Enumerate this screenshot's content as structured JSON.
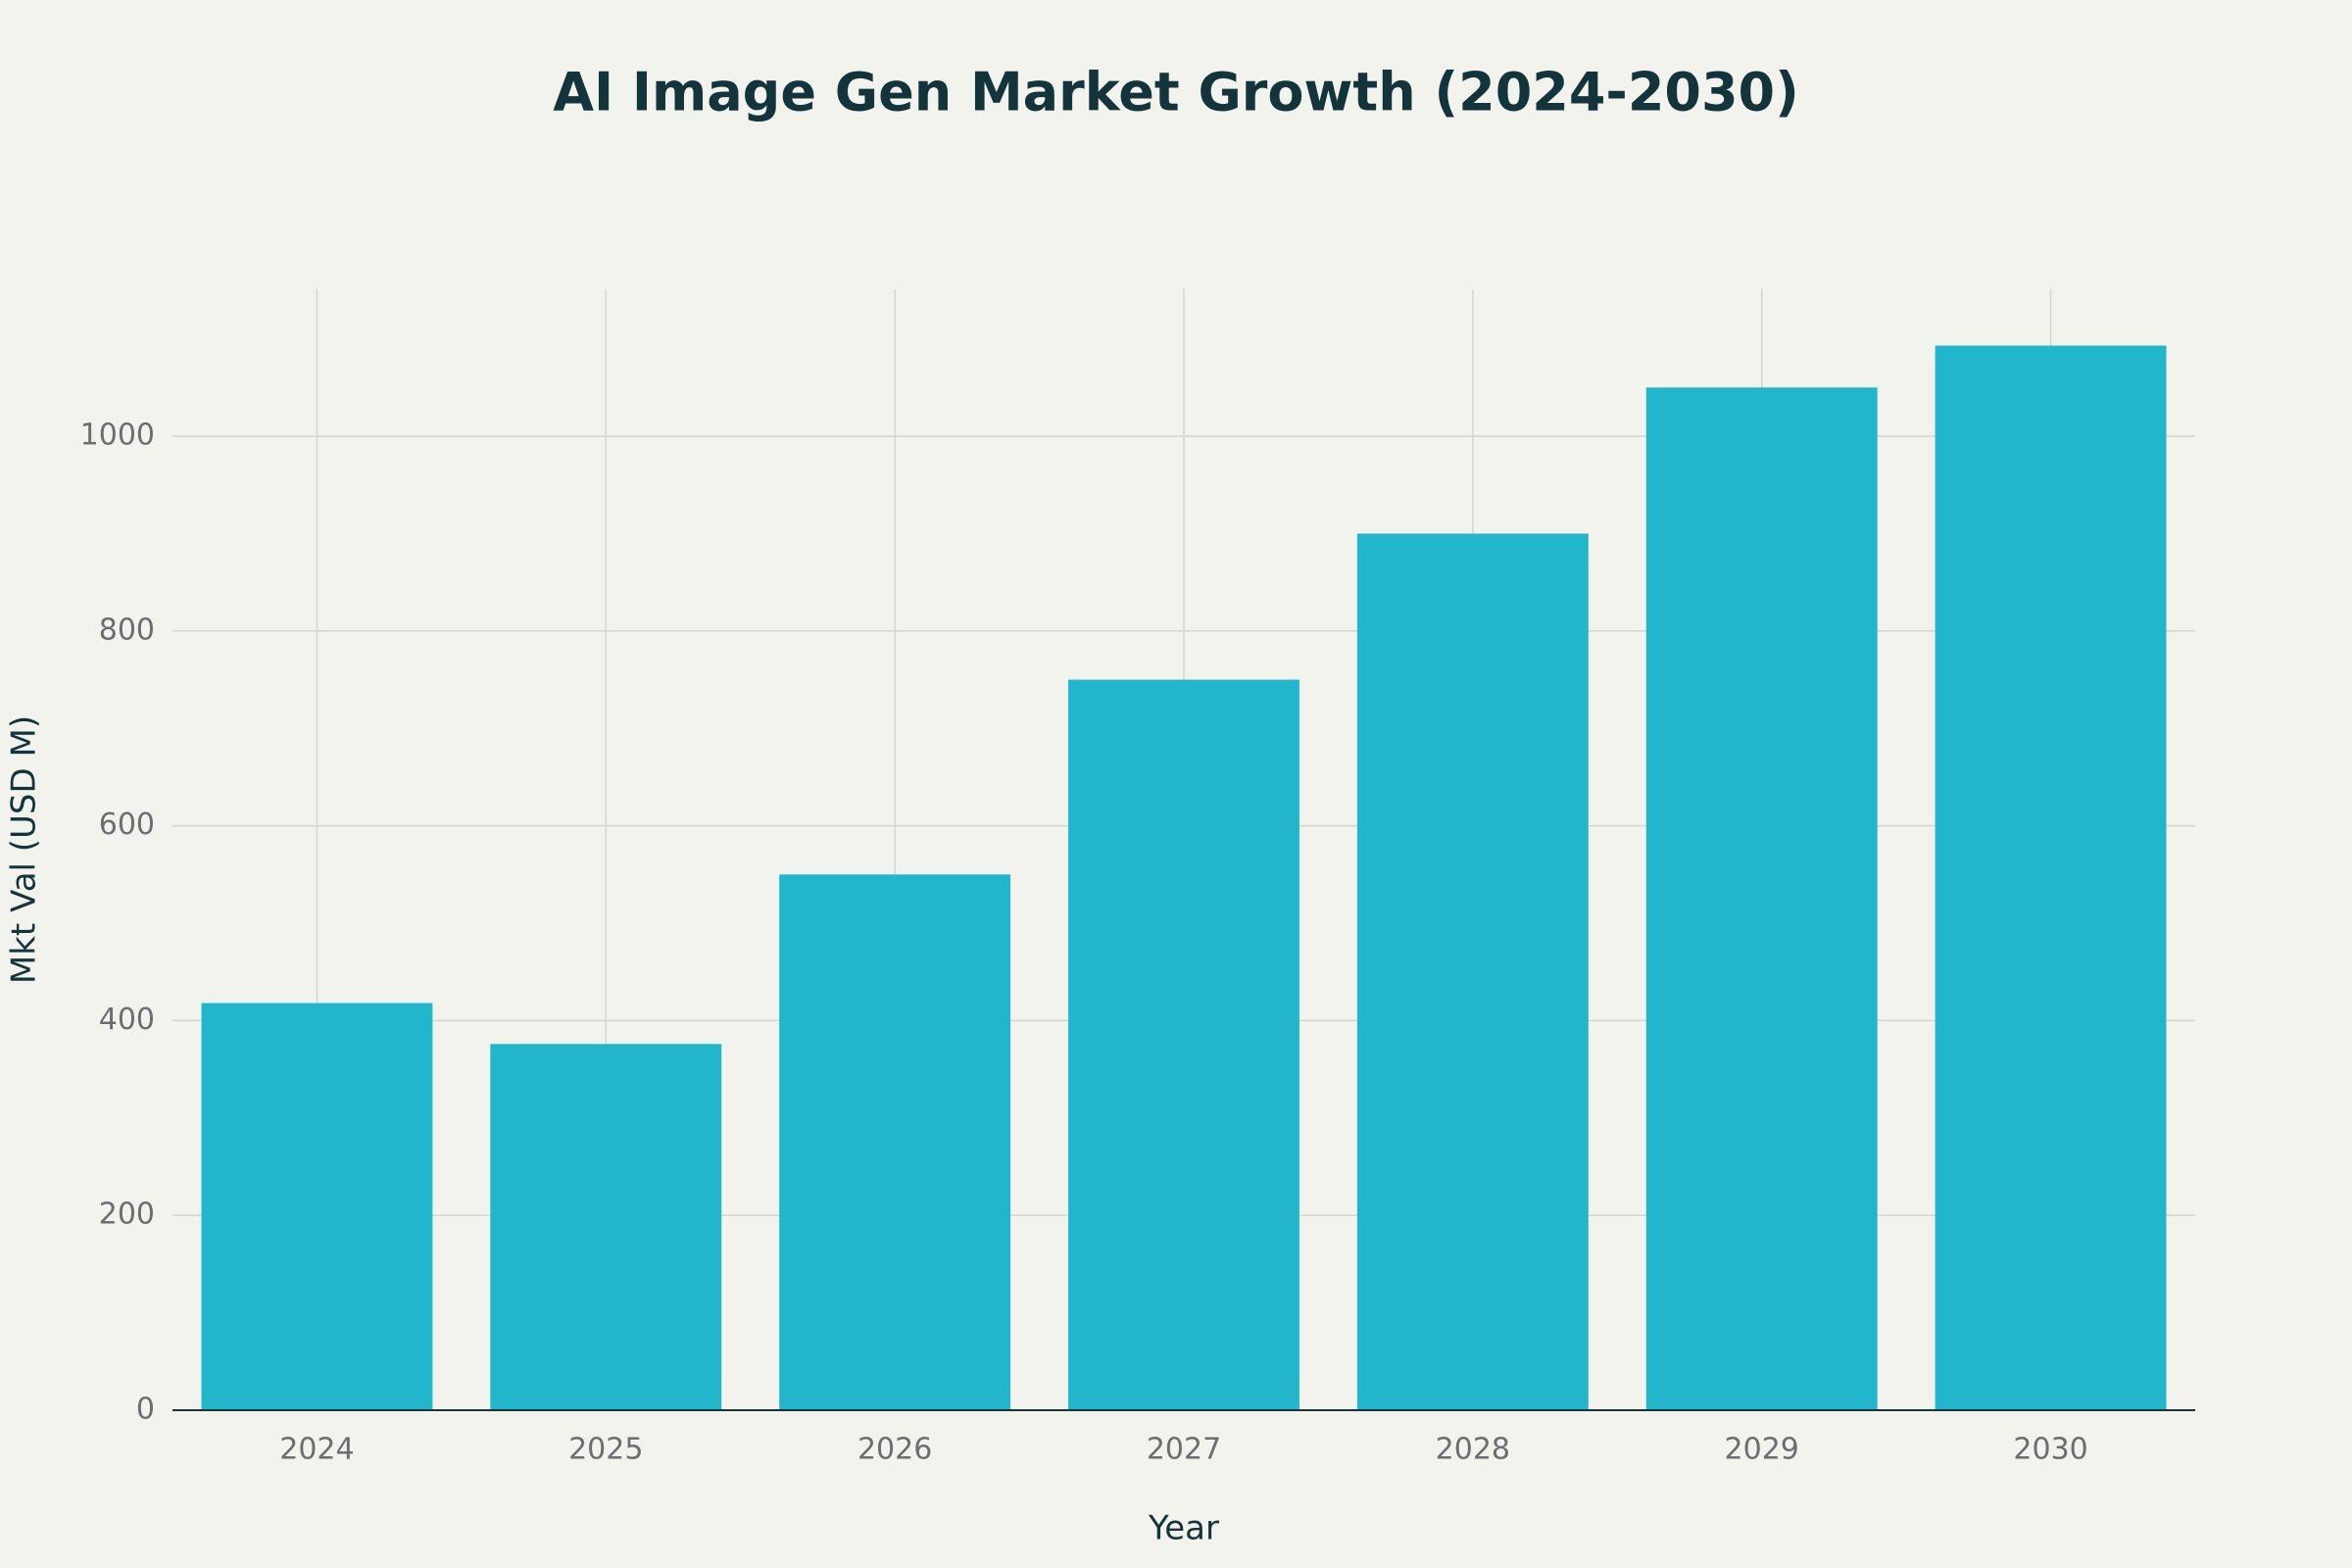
{
  "chart_data": {
    "type": "bar",
    "title": "AI Image Gen Market Growth (2024-2030)",
    "x_label": "Year",
    "y_label": "Mkt Val (USD M)",
    "categories": [
      "2024",
      "2025",
      "2026",
      "2027",
      "2028",
      "2029",
      "2030"
    ],
    "values": [
      418,
      376,
      550,
      750,
      900,
      1050,
      1093
    ],
    "color": "#21b6cc",
    "ylim": [
      0,
      1151
    ],
    "yticks": [
      0,
      200,
      400,
      600,
      800,
      1000
    ],
    "grid": true
  }
}
